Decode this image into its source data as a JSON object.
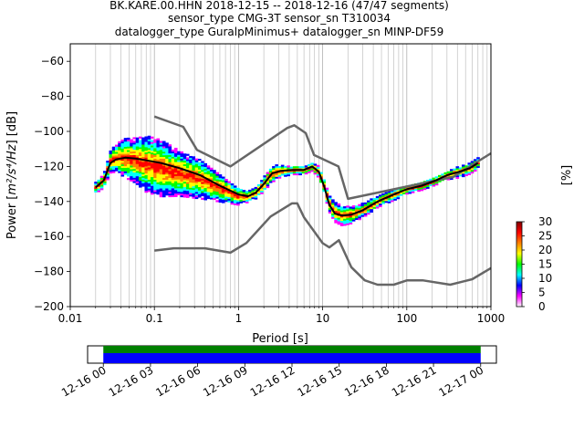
{
  "chart_data": {
    "type": "heatmap",
    "title_lines": [
      "BK.KARE.00.HHN   2018-12-15 -- 2018-12-16  (47/47 segments)",
      "sensor_type CMG-3T sensor_sn T310034",
      "datalogger_type GuralpMinimus+ datalogger_sn MINP-DF59"
    ],
    "xlabel": "Period [s]",
    "ylabel_prefix": "Power [",
    "ylabel_math": "m²/s⁴/Hz",
    "ylabel_suffix": "] [dB]",
    "xscale": "log",
    "xlim": [
      0.01,
      1000
    ],
    "ylim": [
      -200,
      -50
    ],
    "x_ticks": [
      {
        "value": 0.01,
        "label": "0.01"
      },
      {
        "value": 0.1,
        "label": "0.1"
      },
      {
        "value": 1,
        "label": "1"
      },
      {
        "value": 10,
        "label": "10"
      },
      {
        "value": 100,
        "label": "100"
      },
      {
        "value": 1000,
        "label": "1000"
      }
    ],
    "y_ticks": [
      {
        "value": -60,
        "label": "−60"
      },
      {
        "value": -80,
        "label": "−80"
      },
      {
        "value": -100,
        "label": "−100"
      },
      {
        "value": -120,
        "label": "−120"
      },
      {
        "value": -140,
        "label": "−140"
      },
      {
        "value": -160,
        "label": "−160"
      },
      {
        "value": -180,
        "label": "−180"
      },
      {
        "value": -200,
        "label": "−200"
      }
    ],
    "grid": "x-major-and-minor",
    "colorbar": {
      "label": "[%]",
      "min": 0,
      "max": 30,
      "ticks": [
        {
          "value": 0,
          "label": "0"
        },
        {
          "value": 5,
          "label": "5"
        },
        {
          "value": 10,
          "label": "10"
        },
        {
          "value": 15,
          "label": "15"
        },
        {
          "value": 20,
          "label": "20"
        },
        {
          "value": 25,
          "label": "25"
        },
        {
          "value": 30,
          "label": "30"
        }
      ],
      "colors": [
        "#ffffff",
        "#ff00ff",
        "#0000ff",
        "#00ffff",
        "#00ff00",
        "#ffff00",
        "#ff8000",
        "#ff0000",
        "#800000"
      ]
    },
    "noise_models": [
      {
        "name": "NHNM",
        "color": "#666666",
        "x": [
          0.1,
          0.22,
          0.32,
          0.8,
          3.8,
          4.6,
          6.3,
          7.9,
          15.4,
          20,
          354.8,
          1000
        ],
        "y": [
          -91.5,
          -97.4,
          -110.5,
          -120,
          -98,
          -96.5,
          -101,
          -113.5,
          -120,
          -138.5,
          -126,
          -112.5
        ]
      },
      {
        "name": "NLNM",
        "color": "#666666",
        "x": [
          0.1,
          0.17,
          0.4,
          0.8,
          1.24,
          2.4,
          4.3,
          5,
          6,
          10,
          12,
          15.6,
          21.9,
          31.6,
          45,
          70,
          101,
          154,
          328,
          600,
          1000
        ],
        "y": [
          -168,
          -166.7,
          -166.7,
          -169.2,
          -163.7,
          -148.6,
          -141.1,
          -141.1,
          -149,
          -163.8,
          -166.2,
          -162.1,
          -177.5,
          -185,
          -187.5,
          -187.5,
          -185,
          -185,
          -187.5,
          -184.4,
          -178
        ]
      }
    ],
    "median": {
      "name": "median",
      "color": "#000000",
      "x": [
        0.02,
        0.025,
        0.03,
        0.035,
        0.045,
        0.06,
        0.08,
        0.12,
        0.2,
        0.35,
        0.6,
        1.0,
        1.3,
        1.6,
        2.0,
        2.5,
        3.2,
        4.5,
        6.0,
        7.5,
        9.0,
        10.5,
        12.0,
        14.0,
        17.0,
        22.0,
        30.0,
        45.0,
        70.0,
        100.0,
        150.0,
        220.0,
        300.0,
        420.0,
        560.0,
        700.0
      ],
      "y": [
        -132,
        -128,
        -118,
        -116,
        -115,
        -115.5,
        -116.5,
        -118,
        -121,
        -125,
        -131,
        -136,
        -137,
        -135,
        -130,
        -124,
        -122.5,
        -122,
        -122,
        -120,
        -123,
        -132,
        -142,
        -147,
        -148,
        -147.5,
        -145,
        -140,
        -136,
        -133,
        -131,
        -128,
        -125,
        -123,
        -121,
        -118
      ]
    },
    "density": {
      "spread_dB": [
        2,
        2.5,
        4,
        5,
        7,
        8,
        10,
        10,
        8,
        7,
        5,
        3,
        2,
        2,
        2.5,
        3,
        2,
        1.5,
        1.5,
        1.5,
        2,
        2.5,
        3,
        3.5,
        3.5,
        3,
        2.5,
        2,
        2,
        1.5,
        1.5,
        1.5,
        1.5,
        2,
        2,
        2
      ],
      "offset_dB": [
        0,
        0,
        1,
        1,
        0,
        -1,
        -2,
        -3,
        -3,
        -2,
        -1,
        -1,
        0,
        0,
        0,
        0,
        0,
        0,
        0,
        0,
        0,
        0,
        1,
        1,
        0,
        0,
        0,
        0,
        0,
        0,
        0,
        0,
        0,
        0,
        0,
        0
      ]
    }
  },
  "timeline": {
    "start": "2018-12-15T23:00:00",
    "end": "2018-12-17T01:00:00",
    "coverage": [
      {
        "start": "2018-12-16T00:00:00",
        "end": "2018-12-17T00:00:00",
        "color": "#008000"
      }
    ],
    "segments": [
      {
        "start": "2018-12-16T00:00:00",
        "end": "2018-12-17T00:00:00",
        "color": "#0000ff"
      }
    ],
    "ticks": [
      {
        "label": "12-16 00",
        "time": "2018-12-16T00:00:00"
      },
      {
        "label": "12-16 03",
        "time": "2018-12-16T03:00:00"
      },
      {
        "label": "12-16 06",
        "time": "2018-12-16T06:00:00"
      },
      {
        "label": "12-16 09",
        "time": "2018-12-16T09:00:00"
      },
      {
        "label": "12-16 12",
        "time": "2018-12-16T12:00:00"
      },
      {
        "label": "12-16 15",
        "time": "2018-12-16T15:00:00"
      },
      {
        "label": "12-16 18",
        "time": "2018-12-16T18:00:00"
      },
      {
        "label": "12-16 21",
        "time": "2018-12-16T21:00:00"
      },
      {
        "label": "12-17 00",
        "time": "2018-12-17T00:00:00"
      }
    ]
  }
}
